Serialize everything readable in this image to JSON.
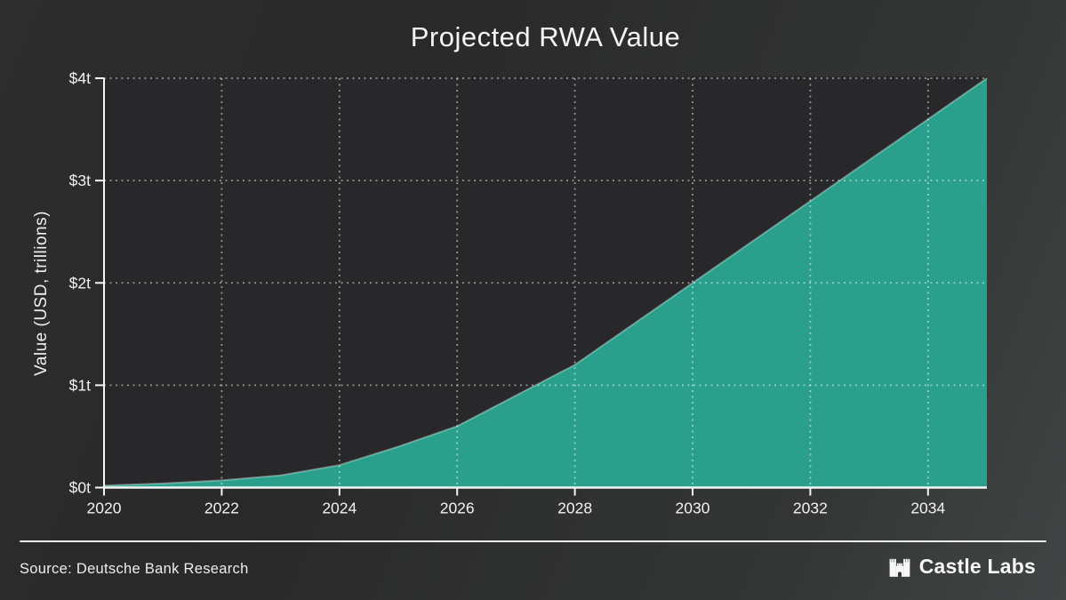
{
  "title": "Projected RWA Value",
  "y_axis_label": "Value (USD, trillions)",
  "footer": {
    "source": "Source: Deutsche Bank Research",
    "brand": "Castle Labs"
  },
  "colors": {
    "accent_teal": "#2aa08c",
    "area_edge_highlight": "rgba(255,255,255,0.35)",
    "plot_background": "#28282a",
    "page_background_left": "#2d2d2d",
    "page_background_right": "#424545",
    "text": "#f2f2f2",
    "gridline": "rgba(255,255,255,0.5)",
    "axis": "#f5f5f5",
    "divider": "#ececec"
  },
  "chart_data": {
    "type": "area",
    "title": "Projected RWA Value",
    "xlabel": "",
    "ylabel": "Value (USD, trillions)",
    "series_name": "Projected RWA Value",
    "x": [
      2020,
      2021,
      2022,
      2023,
      2024,
      2025,
      2026,
      2027,
      2028,
      2029,
      2030,
      2031,
      2032,
      2033,
      2034,
      2035
    ],
    "values": [
      0.02,
      0.04,
      0.07,
      0.12,
      0.22,
      0.4,
      0.6,
      0.9,
      1.2,
      1.6,
      2.0,
      2.4,
      2.8,
      3.2,
      3.6,
      4.0
    ],
    "x_tick_values": [
      2020,
      2022,
      2024,
      2026,
      2028,
      2030,
      2032,
      2034
    ],
    "x_tick_labels": [
      "2020",
      "2022",
      "2024",
      "2026",
      "2028",
      "2030",
      "2032",
      "2034"
    ],
    "y_tick_values": [
      0,
      1,
      2,
      3,
      4
    ],
    "y_tick_labels": [
      "$0t",
      "$1t",
      "$2t",
      "$3t",
      "$4t"
    ],
    "xlim": [
      2020,
      2035
    ],
    "ylim": [
      0,
      4
    ],
    "grid": "dotted",
    "legend": "none"
  }
}
